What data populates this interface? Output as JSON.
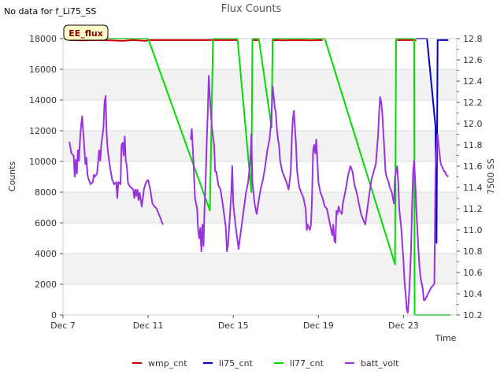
{
  "chart_data": {
    "type": "line",
    "title": "Flux Counts",
    "note": "No data for f_Li75_SS",
    "badge": "EE_flux",
    "xlabel": "Time",
    "ylabel": "Counts",
    "y2label": "7500 SS",
    "xlim": [
      7,
      25.5
    ],
    "ylim": [
      0,
      18000
    ],
    "y2lim": [
      10.2,
      12.8
    ],
    "xticks": [
      {
        "x": 7,
        "label": "Dec 7"
      },
      {
        "x": 11,
        "label": "Dec 11"
      },
      {
        "x": 15,
        "label": "Dec 15"
      },
      {
        "x": 19,
        "label": "Dec 19"
      },
      {
        "x": 23,
        "label": "Dec 23"
      }
    ],
    "yticks": [
      0,
      2000,
      4000,
      6000,
      8000,
      10000,
      12000,
      14000,
      16000,
      18000
    ],
    "y2ticks": [
      "10.2",
      "10.4",
      "10.6",
      "10.8",
      "11.0",
      "11.2",
      "11.4",
      "11.6",
      "11.8",
      "12.0",
      "12.2",
      "12.4",
      "12.6",
      "12.8"
    ],
    "series": [
      {
        "name": "wmp_cnt",
        "color": "#cc0000",
        "axis": "left",
        "points": [
          [
            7.3,
            17900
          ],
          [
            8.0,
            17880
          ],
          [
            8.6,
            17900
          ],
          [
            9.2,
            17880
          ],
          [
            9.8,
            17850
          ],
          [
            10.3,
            17900
          ],
          [
            10.9,
            17850
          ],
          [
            11.0,
            17900
          ],
          [
            14.0,
            17900
          ],
          [
            15.0,
            17900
          ],
          [
            15.2,
            17900
          ],
          null,
          [
            15.9,
            17900
          ],
          [
            16.2,
            17900
          ],
          null,
          [
            16.8,
            17900
          ],
          [
            17.4,
            17880
          ],
          [
            18.0,
            17900
          ],
          [
            18.6,
            17880
          ],
          [
            19.2,
            17900
          ],
          null,
          [
            22.7,
            17900
          ],
          [
            23.6,
            17900
          ]
        ]
      },
      {
        "name": "li75_cnt",
        "color": "#0000cc",
        "axis": "left",
        "points": [
          [
            23.6,
            18000
          ],
          [
            24.1,
            18000
          ],
          [
            24.5,
            12300
          ],
          [
            24.55,
            4700
          ],
          [
            24.6,
            17900
          ],
          [
            25.1,
            17900
          ]
        ]
      },
      {
        "name": "li77_cnt",
        "color": "#00dd00",
        "axis": "left",
        "points": [
          [
            7.3,
            18000
          ],
          [
            11.0,
            18000
          ],
          [
            13.9,
            6800
          ],
          [
            14.05,
            18000
          ],
          [
            15.2,
            18000
          ],
          [
            15.85,
            8000
          ],
          [
            15.9,
            18000
          ],
          [
            16.2,
            18000
          ],
          [
            16.8,
            12200
          ],
          [
            16.85,
            18000
          ],
          [
            19.3,
            18000
          ],
          [
            22.6,
            3300
          ],
          [
            22.65,
            18000
          ],
          [
            23.5,
            18000
          ],
          [
            23.52,
            0
          ],
          [
            25.2,
            0
          ]
        ]
      },
      {
        "name": "batt_volt",
        "color": "#9933dd",
        "axis": "right",
        "points": [
          [
            7.3,
            11.83
          ],
          [
            7.4,
            11.72
          ],
          [
            7.5,
            11.7
          ],
          [
            7.55,
            11.5
          ],
          [
            7.6,
            11.66
          ],
          [
            7.65,
            11.53
          ],
          [
            7.7,
            11.75
          ],
          [
            7.75,
            11.65
          ],
          [
            7.8,
            11.85
          ],
          [
            7.85,
            11.98
          ],
          [
            7.9,
            12.07
          ],
          [
            7.95,
            11.92
          ],
          [
            8.0,
            11.78
          ],
          [
            8.05,
            11.62
          ],
          [
            8.1,
            11.68
          ],
          [
            8.15,
            11.52
          ],
          [
            8.2,
            11.48
          ],
          [
            8.3,
            11.43
          ],
          [
            8.4,
            11.45
          ],
          [
            8.45,
            11.52
          ],
          [
            8.5,
            11.5
          ],
          [
            8.6,
            11.53
          ],
          [
            8.7,
            11.75
          ],
          [
            8.75,
            11.65
          ],
          [
            8.8,
            11.8
          ],
          [
            8.9,
            11.96
          ],
          [
            8.95,
            12.2
          ],
          [
            9.0,
            12.26
          ],
          [
            9.05,
            11.9
          ],
          [
            9.1,
            11.75
          ],
          [
            9.2,
            11.6
          ],
          [
            9.3,
            11.48
          ],
          [
            9.4,
            11.43
          ],
          [
            9.5,
            11.45
          ],
          [
            9.55,
            11.3
          ],
          [
            9.6,
            11.45
          ],
          [
            9.7,
            11.43
          ],
          [
            9.75,
            11.8
          ],
          [
            9.8,
            11.82
          ],
          [
            9.85,
            11.7
          ],
          [
            9.9,
            11.88
          ],
          [
            9.95,
            11.65
          ],
          [
            10.0,
            11.6
          ],
          [
            10.05,
            11.45
          ],
          [
            10.1,
            11.42
          ],
          [
            10.2,
            11.4
          ],
          [
            10.3,
            11.38
          ],
          [
            10.35,
            11.3
          ],
          [
            10.4,
            11.38
          ],
          [
            10.45,
            11.32
          ],
          [
            10.5,
            11.38
          ],
          [
            10.55,
            11.28
          ],
          [
            10.6,
            11.35
          ],
          [
            10.7,
            11.22
          ],
          [
            10.8,
            11.38
          ],
          [
            10.9,
            11.45
          ],
          [
            11.0,
            11.47
          ],
          [
            11.1,
            11.38
          ],
          [
            11.2,
            11.25
          ],
          [
            11.3,
            11.22
          ],
          [
            11.4,
            11.2
          ],
          [
            11.5,
            11.15
          ],
          [
            11.6,
            11.1
          ],
          [
            11.65,
            11.07
          ],
          [
            11.7,
            11.05
          ],
          null,
          [
            13.0,
            11.85
          ],
          [
            13.05,
            11.95
          ],
          [
            13.1,
            11.75
          ],
          [
            13.15,
            11.55
          ],
          [
            13.2,
            11.3
          ],
          [
            13.3,
            11.2
          ],
          [
            13.35,
            11.0
          ],
          [
            13.4,
            10.92
          ],
          [
            13.45,
            11.02
          ],
          [
            13.5,
            10.8
          ],
          [
            13.55,
            11.05
          ],
          [
            13.6,
            10.85
          ],
          [
            13.65,
            11.2
          ],
          [
            13.7,
            11.45
          ],
          [
            13.75,
            11.8
          ],
          [
            13.8,
            12.1
          ],
          [
            13.85,
            12.45
          ],
          [
            13.9,
            12.25
          ],
          [
            13.95,
            12.1
          ],
          [
            14.0,
            11.95
          ],
          [
            14.1,
            11.8
          ],
          [
            14.15,
            11.55
          ],
          [
            14.2,
            11.55
          ],
          [
            14.3,
            11.42
          ],
          [
            14.4,
            11.38
          ],
          [
            14.5,
            11.25
          ],
          [
            14.6,
            11.1
          ],
          [
            14.65,
            11.02
          ],
          [
            14.7,
            10.8
          ],
          [
            14.75,
            10.85
          ],
          [
            14.8,
            11.0
          ],
          [
            14.9,
            11.32
          ],
          [
            14.95,
            11.6
          ],
          [
            15.0,
            11.25
          ],
          [
            15.1,
            11.05
          ],
          [
            15.2,
            10.9
          ],
          [
            15.25,
            10.82
          ],
          [
            15.3,
            10.9
          ],
          [
            15.4,
            11.05
          ],
          [
            15.5,
            11.2
          ],
          [
            15.6,
            11.35
          ],
          [
            15.7,
            11.45
          ],
          [
            15.8,
            11.65
          ],
          [
            15.85,
            11.9
          ],
          [
            15.9,
            11.45
          ],
          [
            15.95,
            11.35
          ],
          [
            16.0,
            11.25
          ],
          [
            16.1,
            11.15
          ],
          [
            16.2,
            11.28
          ],
          [
            16.3,
            11.4
          ],
          [
            16.4,
            11.48
          ],
          [
            16.5,
            11.6
          ],
          [
            16.6,
            11.75
          ],
          [
            16.7,
            11.85
          ],
          [
            16.75,
            11.95
          ],
          [
            16.8,
            12.1
          ],
          [
            16.85,
            12.35
          ],
          [
            16.9,
            12.25
          ],
          [
            16.95,
            12.15
          ],
          [
            17.0,
            12.1
          ],
          [
            17.05,
            11.95
          ],
          [
            17.1,
            11.85
          ],
          [
            17.15,
            11.8
          ],
          [
            17.2,
            11.65
          ],
          [
            17.3,
            11.55
          ],
          [
            17.4,
            11.5
          ],
          [
            17.5,
            11.45
          ],
          [
            17.6,
            11.38
          ],
          [
            17.7,
            11.55
          ],
          [
            17.75,
            11.85
          ],
          [
            17.8,
            12.05
          ],
          [
            17.85,
            12.12
          ],
          [
            17.9,
            11.95
          ],
          [
            17.95,
            11.8
          ],
          [
            18.0,
            11.55
          ],
          [
            18.1,
            11.4
          ],
          [
            18.2,
            11.35
          ],
          [
            18.3,
            11.3
          ],
          [
            18.4,
            11.2
          ],
          [
            18.45,
            11.0
          ],
          [
            18.5,
            11.05
          ],
          [
            18.6,
            11.0
          ],
          [
            18.65,
            11.05
          ],
          [
            18.7,
            11.3
          ],
          [
            18.75,
            11.75
          ],
          [
            18.8,
            11.8
          ],
          [
            18.85,
            11.72
          ],
          [
            18.9,
            11.85
          ],
          [
            18.95,
            11.65
          ],
          [
            19.0,
            11.45
          ],
          [
            19.1,
            11.35
          ],
          [
            19.2,
            11.3
          ],
          [
            19.3,
            11.22
          ],
          [
            19.4,
            11.2
          ],
          [
            19.5,
            11.1
          ],
          [
            19.6,
            11.0
          ],
          [
            19.65,
            10.95
          ],
          [
            19.7,
            11.05
          ],
          [
            19.75,
            10.9
          ],
          [
            19.8,
            10.88
          ],
          [
            19.85,
            11.18
          ],
          [
            19.9,
            11.15
          ],
          [
            19.95,
            11.22
          ],
          [
            20.0,
            11.18
          ],
          [
            20.1,
            11.15
          ],
          [
            20.15,
            11.25
          ],
          [
            20.2,
            11.3
          ],
          [
            20.3,
            11.4
          ],
          [
            20.4,
            11.52
          ],
          [
            20.5,
            11.6
          ],
          [
            20.6,
            11.55
          ],
          [
            20.7,
            11.42
          ],
          [
            20.8,
            11.35
          ],
          [
            20.9,
            11.25
          ],
          [
            21.0,
            11.15
          ],
          [
            21.1,
            11.1
          ],
          [
            21.2,
            11.05
          ],
          [
            21.3,
            11.2
          ],
          [
            21.4,
            11.35
          ],
          [
            21.5,
            11.48
          ],
          [
            21.6,
            11.55
          ],
          [
            21.7,
            11.62
          ],
          [
            21.75,
            11.75
          ],
          [
            21.8,
            11.88
          ],
          [
            21.85,
            12.1
          ],
          [
            21.9,
            12.25
          ],
          [
            21.95,
            12.2
          ],
          [
            22.0,
            12.1
          ],
          [
            22.1,
            11.75
          ],
          [
            22.15,
            11.55
          ],
          [
            22.2,
            11.5
          ],
          [
            22.3,
            11.45
          ],
          [
            22.35,
            11.4
          ],
          [
            22.4,
            11.38
          ],
          [
            22.45,
            11.35
          ],
          [
            22.5,
            11.3
          ],
          [
            22.55,
            11.25
          ],
          [
            22.6,
            11.5
          ],
          [
            22.7,
            11.6
          ],
          [
            22.75,
            11.45
          ],
          [
            22.8,
            11.2
          ],
          [
            22.9,
            11.0
          ],
          [
            23.0,
            10.7
          ],
          [
            23.05,
            10.5
          ],
          [
            23.1,
            10.4
          ],
          [
            23.15,
            10.25
          ],
          [
            23.2,
            10.22
          ],
          [
            23.25,
            10.35
          ],
          [
            23.3,
            10.55
          ],
          [
            23.35,
            10.8
          ],
          [
            23.4,
            11.2
          ],
          [
            23.45,
            11.55
          ],
          [
            23.5,
            11.65
          ],
          [
            23.55,
            11.45
          ],
          [
            23.6,
            11.2
          ],
          [
            23.65,
            11.0
          ],
          [
            23.7,
            10.8
          ],
          [
            23.75,
            10.65
          ],
          [
            23.8,
            10.55
          ],
          [
            23.85,
            10.5
          ],
          [
            23.9,
            10.45
          ],
          [
            23.95,
            10.34
          ],
          [
            24.0,
            10.34
          ],
          [
            24.1,
            10.38
          ],
          [
            24.2,
            10.42
          ],
          [
            24.3,
            10.46
          ],
          [
            24.4,
            10.48
          ],
          [
            24.45,
            10.5
          ],
          [
            24.5,
            11.55
          ],
          [
            24.55,
            11.75
          ],
          [
            24.6,
            11.9
          ],
          [
            24.65,
            11.8
          ],
          [
            24.7,
            11.7
          ],
          [
            24.75,
            11.62
          ],
          [
            24.8,
            11.6
          ],
          [
            24.85,
            11.58
          ],
          [
            24.9,
            11.55
          ],
          [
            24.95,
            11.55
          ],
          [
            25.0,
            11.52
          ],
          [
            25.1,
            11.5
          ]
        ]
      }
    ],
    "legend": [
      {
        "label": "wmp_cnt",
        "color": "#cc0000"
      },
      {
        "label": "li75_cnt",
        "color": "#0000cc"
      },
      {
        "label": "li77_cnt",
        "color": "#00dd00"
      },
      {
        "label": "batt_volt",
        "color": "#9933dd"
      }
    ],
    "legend_position": "bottom-center",
    "background_bands": true
  }
}
